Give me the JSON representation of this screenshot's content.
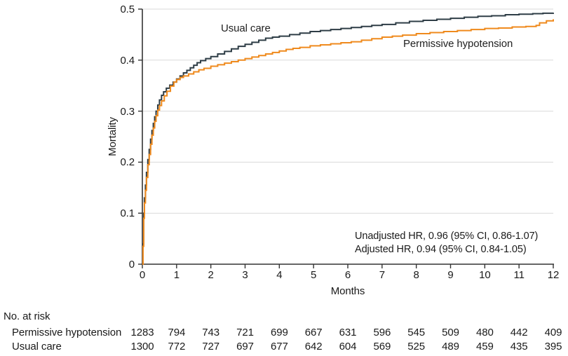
{
  "colors": {
    "axis": "#333333",
    "grid": "#d9d9d9",
    "text": "#1a1a1a",
    "usual_care_line": "#2e3d46",
    "permissive_line": "#ef8a1d",
    "background": "#ffffff"
  },
  "chart_data": {
    "type": "line",
    "subtype": "kaplan-meier-step",
    "title": "",
    "xlabel": "Months",
    "ylabel": "Mortality",
    "xlim": [
      0,
      12
    ],
    "ylim": [
      0,
      0.5
    ],
    "x_ticks": [
      "0",
      "1",
      "2",
      "3",
      "4",
      "5",
      "6",
      "7",
      "8",
      "9",
      "10",
      "11",
      "12"
    ],
    "y_ticks": [
      "0",
      "0.1",
      "0.2",
      "0.3",
      "0.4",
      "0.5"
    ],
    "grid": "horizontal",
    "legend_position": "inline-labels",
    "annotations": [
      "Unadjusted HR, 0.96 (95% CI, 0.86-1.07)",
      "Adjusted HR, 0.94 (95% CI, 0.84-1.05)"
    ],
    "series": [
      {
        "name": "Usual care",
        "color": "#2e3d46",
        "points": [
          [
            0,
            0
          ],
          [
            0.02,
            0.04
          ],
          [
            0.04,
            0.1
          ],
          [
            0.06,
            0.13
          ],
          [
            0.09,
            0.155
          ],
          [
            0.12,
            0.18
          ],
          [
            0.16,
            0.205
          ],
          [
            0.2,
            0.225
          ],
          [
            0.24,
            0.245
          ],
          [
            0.28,
            0.262
          ],
          [
            0.32,
            0.276
          ],
          [
            0.36,
            0.289
          ],
          [
            0.4,
            0.3
          ],
          [
            0.45,
            0.312
          ],
          [
            0.5,
            0.322
          ],
          [
            0.56,
            0.331
          ],
          [
            0.62,
            0.338
          ],
          [
            0.7,
            0.345
          ],
          [
            0.8,
            0.351
          ],
          [
            0.9,
            0.357
          ],
          [
            1.0,
            0.363
          ],
          [
            1.1,
            0.369
          ],
          [
            1.2,
            0.375
          ],
          [
            1.3,
            0.38
          ],
          [
            1.4,
            0.385
          ],
          [
            1.5,
            0.39
          ],
          [
            1.6,
            0.395
          ],
          [
            1.7,
            0.399
          ],
          [
            1.85,
            0.403
          ],
          [
            2.0,
            0.407
          ],
          [
            2.2,
            0.412
          ],
          [
            2.4,
            0.417
          ],
          [
            2.6,
            0.422
          ],
          [
            2.8,
            0.427
          ],
          [
            3.0,
            0.431
          ],
          [
            3.2,
            0.435
          ],
          [
            3.4,
            0.439
          ],
          [
            3.6,
            0.443
          ],
          [
            3.8,
            0.445
          ],
          [
            4.0,
            0.447
          ],
          [
            4.3,
            0.45
          ],
          [
            4.6,
            0.453
          ],
          [
            4.9,
            0.456
          ],
          [
            5.2,
            0.458
          ],
          [
            5.5,
            0.46
          ],
          [
            5.8,
            0.462
          ],
          [
            6.1,
            0.464
          ],
          [
            6.4,
            0.466
          ],
          [
            6.7,
            0.468
          ],
          [
            7.0,
            0.47
          ],
          [
            7.4,
            0.473
          ],
          [
            7.8,
            0.476
          ],
          [
            8.2,
            0.478
          ],
          [
            8.6,
            0.48
          ],
          [
            9.0,
            0.482
          ],
          [
            9.4,
            0.484
          ],
          [
            9.8,
            0.486
          ],
          [
            10.2,
            0.487
          ],
          [
            10.6,
            0.489
          ],
          [
            11.0,
            0.49
          ],
          [
            11.4,
            0.491
          ],
          [
            11.7,
            0.492
          ],
          [
            12.0,
            0.493
          ]
        ]
      },
      {
        "name": "Permissive hypotension",
        "color": "#ef8a1d",
        "points": [
          [
            0,
            0
          ],
          [
            0.02,
            0.035
          ],
          [
            0.04,
            0.09
          ],
          [
            0.06,
            0.12
          ],
          [
            0.09,
            0.145
          ],
          [
            0.12,
            0.17
          ],
          [
            0.16,
            0.195
          ],
          [
            0.2,
            0.215
          ],
          [
            0.24,
            0.235
          ],
          [
            0.28,
            0.253
          ],
          [
            0.32,
            0.267
          ],
          [
            0.36,
            0.28
          ],
          [
            0.4,
            0.291
          ],
          [
            0.45,
            0.302
          ],
          [
            0.5,
            0.311
          ],
          [
            0.56,
            0.32
          ],
          [
            0.64,
            0.33
          ],
          [
            0.72,
            0.339
          ],
          [
            0.82,
            0.349
          ],
          [
            0.92,
            0.357
          ],
          [
            1.0,
            0.362
          ],
          [
            1.1,
            0.366
          ],
          [
            1.2,
            0.369
          ],
          [
            1.35,
            0.373
          ],
          [
            1.5,
            0.377
          ],
          [
            1.65,
            0.381
          ],
          [
            1.8,
            0.384
          ],
          [
            2.0,
            0.388
          ],
          [
            2.2,
            0.391
          ],
          [
            2.4,
            0.394
          ],
          [
            2.6,
            0.397
          ],
          [
            2.8,
            0.4
          ],
          [
            3.0,
            0.403
          ],
          [
            3.2,
            0.406
          ],
          [
            3.4,
            0.409
          ],
          [
            3.6,
            0.412
          ],
          [
            3.8,
            0.415
          ],
          [
            4.0,
            0.418
          ],
          [
            4.2,
            0.421
          ],
          [
            4.4,
            0.423
          ],
          [
            4.6,
            0.425
          ],
          [
            4.9,
            0.428
          ],
          [
            5.2,
            0.43
          ],
          [
            5.5,
            0.432
          ],
          [
            5.8,
            0.434
          ],
          [
            6.1,
            0.436
          ],
          [
            6.4,
            0.439
          ],
          [
            6.7,
            0.442
          ],
          [
            7.0,
            0.445
          ],
          [
            7.3,
            0.447
          ],
          [
            7.6,
            0.449
          ],
          [
            8.0,
            0.452
          ],
          [
            8.4,
            0.454
          ],
          [
            8.8,
            0.456
          ],
          [
            9.2,
            0.458
          ],
          [
            9.6,
            0.46
          ],
          [
            10.0,
            0.462
          ],
          [
            10.4,
            0.463
          ],
          [
            10.8,
            0.465
          ],
          [
            11.2,
            0.466
          ],
          [
            11.5,
            0.468
          ],
          [
            11.6,
            0.473
          ],
          [
            11.8,
            0.477
          ],
          [
            12.0,
            0.48
          ]
        ]
      }
    ]
  },
  "risk_table": {
    "title": "No. at risk",
    "rows": [
      {
        "label": "Permissive hypotension",
        "values": [
          1283,
          794,
          743,
          721,
          699,
          667,
          631,
          596,
          545,
          509,
          480,
          442,
          409
        ]
      },
      {
        "label": "Usual care",
        "values": [
          1300,
          772,
          727,
          697,
          677,
          642,
          604,
          569,
          525,
          489,
          459,
          435,
          395
        ]
      }
    ]
  }
}
